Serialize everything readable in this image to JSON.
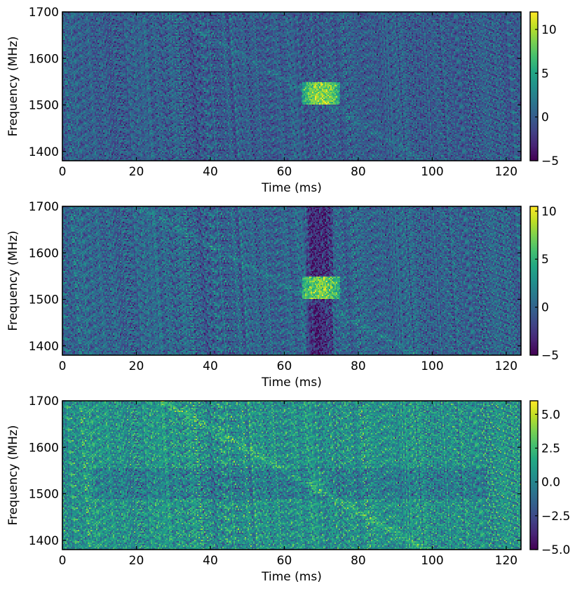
{
  "chart_data": [
    {
      "type": "heatmap",
      "panel": "top",
      "xlabel": "Time (ms)",
      "ylabel": "Frequency (MHz)",
      "xlim": [
        0,
        124
      ],
      "ylim": [
        1380,
        1700
      ],
      "xticks": [
        0,
        20,
        40,
        60,
        80,
        100,
        120
      ],
      "xtick_labels": [
        "0",
        "20",
        "40",
        "60",
        "80",
        "100",
        "120"
      ],
      "yticks": [
        1400,
        1500,
        1600,
        1700
      ],
      "ytick_labels": [
        "1400",
        "1500",
        "1600",
        "1700"
      ],
      "colorbar": {
        "colormap": "viridis",
        "vmin": -5,
        "vmax": 12,
        "ticks": [
          -5,
          0,
          5,
          10
        ],
        "tick_labels": [
          "−5",
          "0",
          "5",
          "10"
        ]
      },
      "features": {
        "background_level": 0,
        "noise_sigma": 1.6,
        "dispersed_sweep": {
          "start": [
            28,
            1700
          ],
          "end": [
            98,
            1380
          ],
          "level": 1.6
        },
        "bright_block": {
          "t_range": [
            65,
            75
          ],
          "f_range": [
            1500,
            1550
          ],
          "level": 9
        },
        "dim_column": null,
        "dim_band": null
      }
    },
    {
      "type": "heatmap",
      "panel": "middle",
      "xlabel": "Time (ms)",
      "ylabel": "Frequency (MHz)",
      "xlim": [
        0,
        124
      ],
      "ylim": [
        1380,
        1700
      ],
      "xticks": [
        0,
        20,
        40,
        60,
        80,
        100,
        120
      ],
      "xtick_labels": [
        "0",
        "20",
        "40",
        "60",
        "80",
        "100",
        "120"
      ],
      "yticks": [
        1400,
        1500,
        1600,
        1700
      ],
      "ytick_labels": [
        "1400",
        "1500",
        "1600",
        "1700"
      ],
      "colorbar": {
        "colormap": "viridis",
        "vmin": -5,
        "vmax": 10.5,
        "ticks": [
          -5,
          0,
          5,
          10
        ],
        "tick_labels": [
          "−5",
          "0",
          "5",
          "10"
        ]
      },
      "features": {
        "background_level": 0,
        "noise_sigma": 1.6,
        "dispersed_sweep": {
          "start": [
            20,
            1700
          ],
          "end": [
            96,
            1380
          ],
          "level": 1.8
        },
        "bright_block": {
          "t_range": [
            65,
            75
          ],
          "f_range": [
            1500,
            1550
          ],
          "level": 7.5
        },
        "dim_column": {
          "t_range": [
            66,
            73
          ],
          "level": -3
        },
        "dim_band": null
      }
    },
    {
      "type": "heatmap",
      "panel": "bottom",
      "xlabel": "Time (ms)",
      "ylabel": "Frequency (MHz)",
      "xlim": [
        0,
        124
      ],
      "ylim": [
        1380,
        1700
      ],
      "xticks": [
        0,
        20,
        40,
        60,
        80,
        100,
        120
      ],
      "xtick_labels": [
        "0",
        "20",
        "40",
        "60",
        "80",
        "100",
        "120"
      ],
      "yticks": [
        1400,
        1500,
        1600,
        1700
      ],
      "ytick_labels": [
        "1400",
        "1500",
        "1600",
        "1700"
      ],
      "colorbar": {
        "colormap": "viridis",
        "vmin": -5,
        "vmax": 6,
        "ticks": [
          -5,
          -2.5,
          0,
          2.5,
          5
        ],
        "tick_labels": [
          "−5.0",
          "−2.5",
          "0.0",
          "2.5",
          "5.0"
        ]
      },
      "features": {
        "background_level": 0.6,
        "noise_sigma": 1.4,
        "dispersed_sweep": {
          "start": [
            27,
            1700
          ],
          "end": [
            98,
            1380
          ],
          "level": 2.2
        },
        "bright_block": {
          "t_range": [
            67,
            72
          ],
          "f_range": [
            1500,
            1550
          ],
          "level": 1.2
        },
        "dim_column": null,
        "dim_band": {
          "t_range": [
            8,
            115
          ],
          "f_range": [
            1490,
            1555
          ],
          "level": -0.9
        }
      }
    }
  ]
}
